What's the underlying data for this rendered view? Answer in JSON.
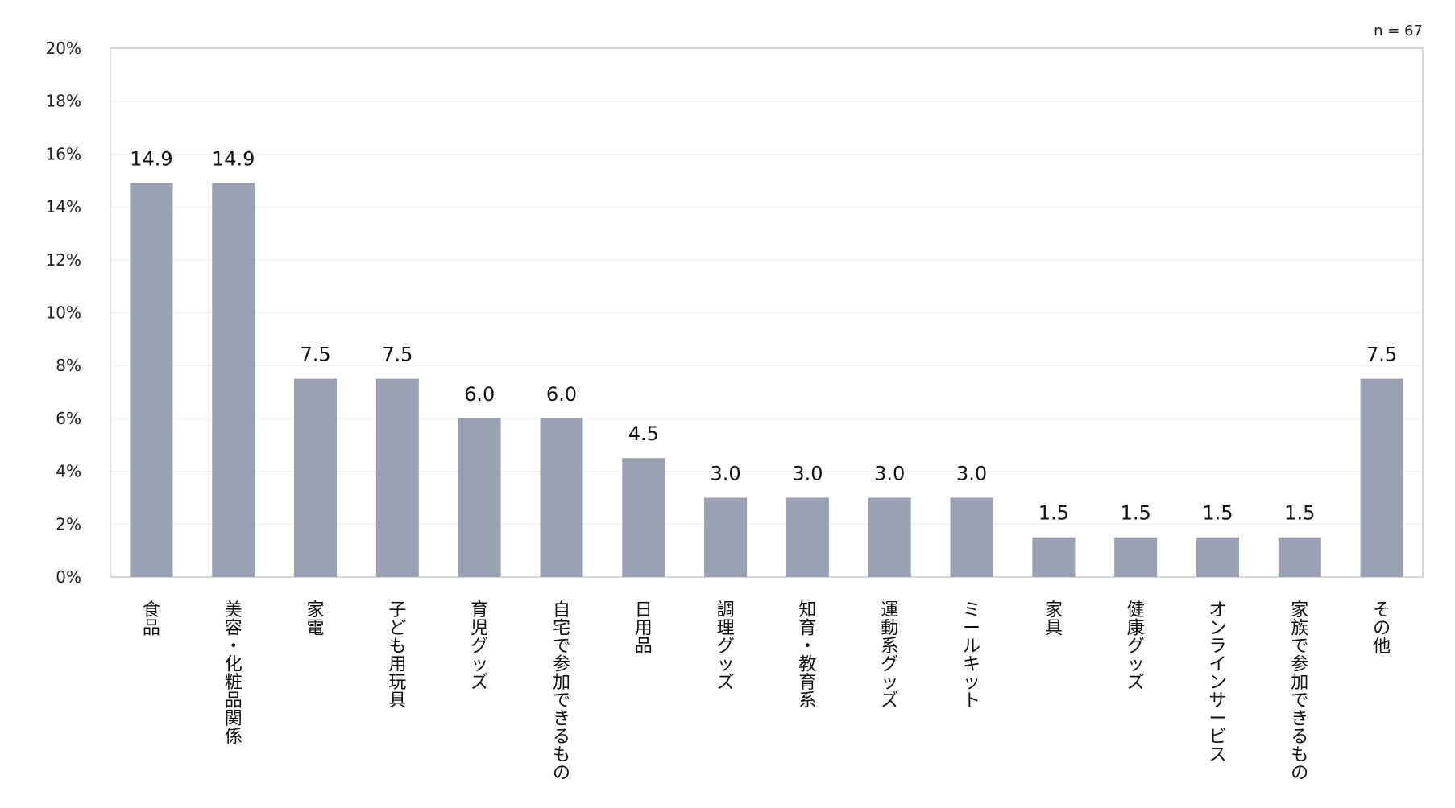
{
  "chart_data": {
    "type": "bar",
    "title": "",
    "xlabel": "",
    "ylabel": "",
    "note": "n = 67",
    "categories": [
      "食品",
      "美容・化粧品関係",
      "家電",
      "子ども用玩具",
      "育児グッズ",
      "自宅で参加できるもの",
      "日用品",
      "調理グッズ",
      "知育・教育系",
      "運動系グッズ",
      "ミールキット",
      "家具",
      "健康グッズ",
      "オンラインサービス",
      "家族で参加できるもの",
      "その他"
    ],
    "values": [
      14.9,
      14.9,
      7.5,
      7.5,
      6.0,
      6.0,
      4.5,
      3.0,
      3.0,
      3.0,
      3.0,
      1.5,
      1.5,
      1.5,
      1.5,
      7.5
    ],
    "value_labels": [
      "14.9",
      "14.9",
      "7.5",
      "7.5",
      "6.0",
      "6.0",
      "4.5",
      "3.0",
      "3.0",
      "3.0",
      "3.0",
      "1.5",
      "1.5",
      "1.5",
      "1.5",
      "7.5"
    ],
    "ylim": [
      0,
      20
    ],
    "yticks": [
      "0%",
      "2%",
      "4%",
      "6%",
      "8%",
      "10%",
      "12%",
      "14%",
      "16%",
      "18%",
      "20%"
    ],
    "grid": true,
    "bar_color": "#9aa1b2",
    "grid_color": "#eeeeee",
    "axis_color": "#cccccc"
  }
}
